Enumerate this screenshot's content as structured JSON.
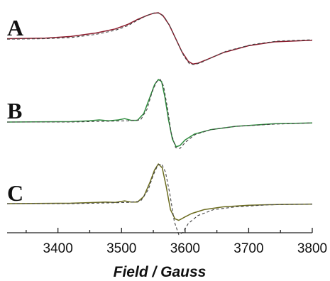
{
  "chart_data": {
    "type": "line",
    "title": "",
    "xlabel": "Field / Gauss",
    "ylabel": "",
    "xlim": [
      3320,
      3800
    ],
    "xticks": [
      3400,
      3500,
      3600,
      3700,
      3800
    ],
    "grid": false,
    "panels": [
      {
        "label": "A",
        "colors": {
          "solid": "#8b1a2b",
          "dashed": "#444444"
        },
        "series": [
          {
            "style": "solid",
            "x": [
              3320,
              3380,
              3420,
              3460,
              3490,
              3510,
              3525,
              3540,
              3550,
              3558,
              3565,
              3575,
              3585,
              3595,
              3605,
              3612,
              3620,
              3635,
              3660,
              3700,
              3740,
              3800
            ],
            "y": [
              0.04,
              0.06,
              0.12,
              0.25,
              0.4,
              0.57,
              0.75,
              0.9,
              0.98,
              1.0,
              0.9,
              0.55,
              0.05,
              -0.45,
              -0.8,
              -0.9,
              -0.87,
              -0.73,
              -0.48,
              -0.22,
              -0.08,
              -0.02
            ]
          },
          {
            "style": "dashed",
            "x": [
              3320,
              3380,
              3420,
              3460,
              3490,
              3510,
              3525,
              3540,
              3552,
              3560,
              3568,
              3578,
              3588,
              3598,
              3607,
              3615,
              3625,
              3640,
              3665,
              3705,
              3745,
              3800
            ],
            "y": [
              0.02,
              0.04,
              0.08,
              0.2,
              0.35,
              0.52,
              0.72,
              0.9,
              1.0,
              0.98,
              0.82,
              0.42,
              -0.1,
              -0.6,
              -0.9,
              -0.92,
              -0.85,
              -0.68,
              -0.42,
              -0.18,
              -0.05,
              0.0
            ]
          }
        ]
      },
      {
        "label": "B",
        "colors": {
          "solid": "#2e8b3d",
          "dashed": "#444444"
        },
        "series": [
          {
            "style": "solid",
            "x": [
              3320,
              3420,
              3450,
              3465,
              3480,
              3495,
              3505,
              3515,
              3525,
              3535,
              3545,
              3552,
              3558,
              3563,
              3568,
              3574,
              3580,
              3586,
              3592,
              3600,
              3615,
              3640,
              3680,
              3740,
              3800
            ],
            "y": [
              0.0,
              0.01,
              0.03,
              0.05,
              0.03,
              0.05,
              0.08,
              0.04,
              0.04,
              0.2,
              0.6,
              0.88,
              1.0,
              0.95,
              0.6,
              0.05,
              -0.4,
              -0.58,
              -0.55,
              -0.42,
              -0.28,
              -0.18,
              -0.1,
              -0.04,
              -0.02
            ]
          },
          {
            "style": "dashed",
            "x": [
              3320,
              3420,
              3480,
              3510,
              3530,
              3540,
              3548,
              3555,
              3561,
              3566,
              3572,
              3578,
              3585,
              3592,
              3600,
              3615,
              3640,
              3680,
              3740,
              3800
            ],
            "y": [
              0.0,
              0.0,
              0.02,
              0.03,
              0.05,
              0.3,
              0.7,
              0.95,
              1.0,
              0.85,
              0.35,
              -0.25,
              -0.6,
              -0.62,
              -0.48,
              -0.3,
              -0.18,
              -0.1,
              -0.05,
              -0.02
            ]
          }
        ]
      },
      {
        "label": "C",
        "colors": {
          "solid": "#6b6b1e",
          "dashed": "#444444"
        },
        "series": [
          {
            "style": "solid",
            "x": [
              3320,
              3420,
              3460,
              3475,
              3490,
              3505,
              3515,
              3525,
              3535,
              3545,
              3552,
              3558,
              3564,
              3570,
              3577,
              3584,
              3590,
              3598,
              3610,
              3630,
              3660,
              3700,
              3750,
              3800
            ],
            "y": [
              0.0,
              0.01,
              0.03,
              0.04,
              0.03,
              0.07,
              0.04,
              0.04,
              0.18,
              0.55,
              0.85,
              1.0,
              0.9,
              0.45,
              -0.15,
              -0.38,
              -0.42,
              -0.35,
              -0.25,
              -0.15,
              -0.08,
              -0.04,
              -0.02,
              -0.01
            ]
          },
          {
            "style": "dashed",
            "x": [
              3320,
              3420,
              3480,
              3510,
              3530,
              3542,
              3550,
              3557,
              3563,
              3569,
              3576,
              3583,
              3590,
              3597,
              3605,
              3620,
              3645,
              3680,
              3730,
              3800
            ],
            "y": [
              0.0,
              0.0,
              0.02,
              0.03,
              0.06,
              0.35,
              0.72,
              0.97,
              1.0,
              0.8,
              0.25,
              -0.45,
              -0.78,
              -0.72,
              -0.5,
              -0.3,
              -0.15,
              -0.08,
              -0.03,
              -0.01
            ]
          }
        ]
      }
    ]
  }
}
